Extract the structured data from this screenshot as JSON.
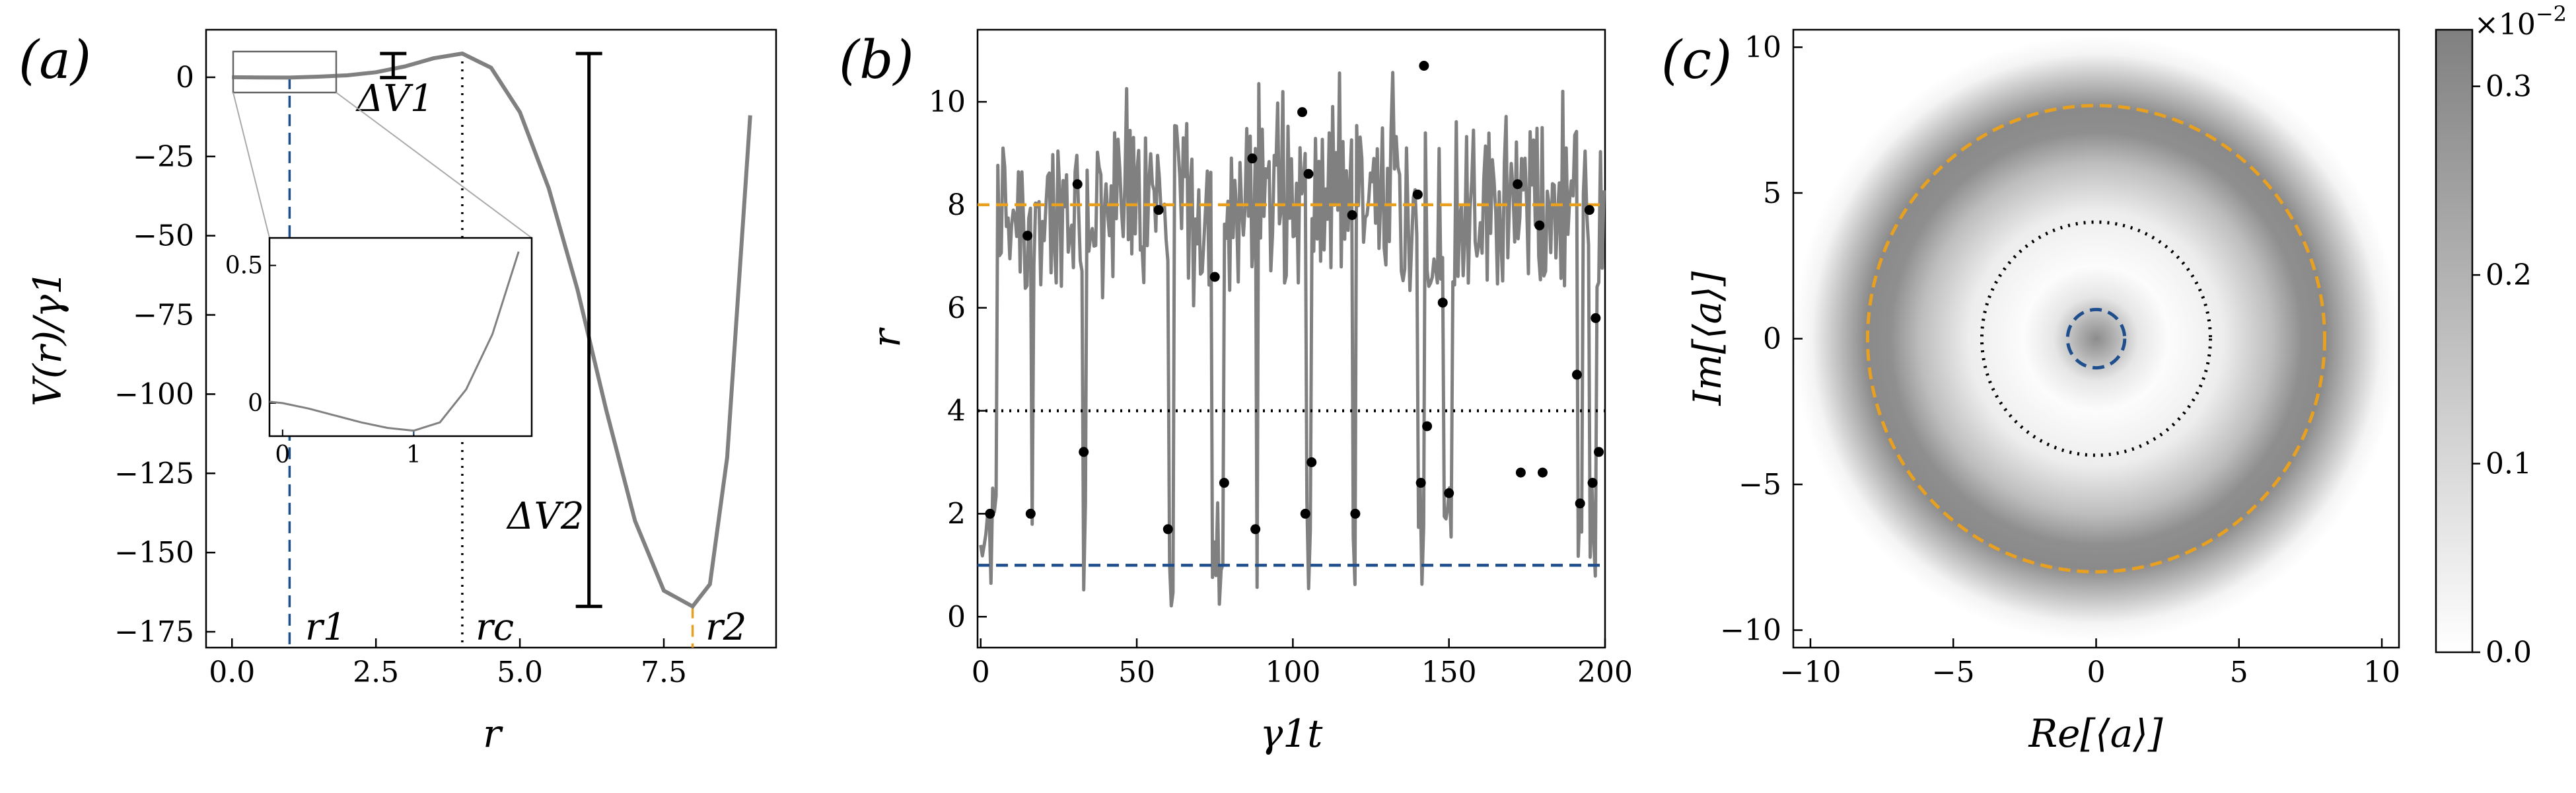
{
  "chart_data": [
    {
      "panel_label": "(a)",
      "type": "line",
      "xlabel": "r",
      "ylabel": "V(r)/γ1",
      "xlim": [
        -0.45,
        9.45
      ],
      "ylim": [
        -180,
        15
      ],
      "xticks": [
        0.0,
        2.5,
        5.0,
        7.5
      ],
      "xtick_labels": [
        "0.0",
        "2.5",
        "5.0",
        "7.5"
      ],
      "yticks": [
        0,
        -25,
        -50,
        -75,
        -100,
        -125,
        -150,
        -175
      ],
      "ytick_labels": [
        "0",
        "−25",
        "−50",
        "−75",
        "−100",
        "−125",
        "−150",
        "−175"
      ],
      "series": [
        {
          "x": [
            0,
            0.5,
            1,
            1.5,
            2,
            2.5,
            3,
            3.5,
            4,
            4.5,
            5,
            5.5,
            6,
            6.5,
            7,
            7.5,
            8,
            8.3,
            8.6,
            9
          ],
          "y": [
            0,
            -0.05,
            -0.1,
            0.2,
            0.6,
            1.6,
            3.4,
            6.0,
            7.5,
            3.0,
            -11,
            -35,
            -67,
            -105,
            -140,
            -162,
            -167,
            -160,
            -120,
            -12
          ]
        }
      ],
      "vlines": [
        {
          "x": 1,
          "style": "dashed",
          "color": "#1f4e8c"
        },
        {
          "x": 4,
          "style": "dotted",
          "color": "#000000"
        },
        {
          "x": 8,
          "style": "dashed",
          "color": "#e8a020"
        }
      ],
      "annotations": {
        "r1": "r1",
        "rc": "rc",
        "r2": "r2",
        "dV1": "ΔV1",
        "dV2": "ΔV2"
      },
      "inset": {
        "xticks": [
          0,
          1
        ],
        "xtick_labels": [
          "0",
          "1"
        ],
        "yticks": [
          0,
          0.5
        ],
        "ytick_labels": [
          "0",
          "0.5"
        ],
        "xlim": [
          -0.1,
          1.9
        ],
        "ylim": [
          -0.12,
          0.6
        ],
        "x": [
          -0.1,
          0,
          0.2,
          0.4,
          0.6,
          0.8,
          1.0,
          1.2,
          1.4,
          1.6,
          1.8
        ],
        "y": [
          0.005,
          0.0,
          -0.02,
          -0.045,
          -0.07,
          -0.09,
          -0.1,
          -0.07,
          0.05,
          0.25,
          0.55
        ]
      }
    },
    {
      "panel_label": "(b)",
      "type": "line",
      "xlabel": "γ1t",
      "ylabel": "r",
      "xlim": [
        -1,
        200
      ],
      "ylim": [
        -0.6,
        11.4
      ],
      "xticks": [
        0,
        50,
        100,
        150,
        200
      ],
      "xtick_labels": [
        "0",
        "50",
        "100",
        "150",
        "200"
      ],
      "yticks": [
        0,
        2,
        4,
        6,
        8,
        10
      ],
      "ytick_labels": [
        "0",
        "2",
        "4",
        "6",
        "8",
        "10"
      ],
      "hlines": [
        {
          "y": 8,
          "style": "dashed",
          "color": "#e8a020"
        },
        {
          "y": 4,
          "style": "dotted",
          "color": "#000000"
        },
        {
          "y": 1,
          "style": "dashed",
          "color": "#1f4e8c"
        }
      ],
      "dots": [
        [
          3,
          2.0
        ],
        [
          15,
          7.4
        ],
        [
          16,
          2.0
        ],
        [
          31,
          8.4
        ],
        [
          33,
          3.2
        ],
        [
          57,
          7.9
        ],
        [
          60,
          1.7
        ],
        [
          75,
          6.6
        ],
        [
          78,
          2.6
        ],
        [
          87,
          8.9
        ],
        [
          88,
          1.7
        ],
        [
          103,
          9.8
        ],
        [
          104,
          2.0
        ],
        [
          105,
          8.6
        ],
        [
          106,
          3.0
        ],
        [
          119,
          7.8
        ],
        [
          120,
          2.0
        ],
        [
          140,
          8.2
        ],
        [
          141,
          2.6
        ],
        [
          142,
          10.7
        ],
        [
          143,
          3.7
        ],
        [
          148,
          6.1
        ],
        [
          150,
          2.4
        ],
        [
          172,
          8.4
        ],
        [
          173,
          2.8
        ],
        [
          179,
          7.6
        ],
        [
          180,
          2.8
        ],
        [
          191,
          4.7
        ],
        [
          192,
          2.2
        ],
        [
          195,
          7.9
        ],
        [
          196,
          2.6
        ],
        [
          197,
          5.8
        ],
        [
          198,
          3.2
        ]
      ]
    },
    {
      "panel_label": "(c)",
      "type": "heatmap",
      "xlabel": "Re[⟨a⟩]",
      "ylabel": "Im[⟨a⟩]",
      "xlim": [
        -10.6,
        10.6
      ],
      "ylim": [
        -10.6,
        10.6
      ],
      "xticks": [
        -10,
        -5,
        0,
        5,
        10
      ],
      "xtick_labels": [
        "−10",
        "−5",
        "0",
        "5",
        "10"
      ],
      "yticks": [
        10,
        5,
        0,
        -5,
        -10
      ],
      "ytick_labels": [
        "10",
        "5",
        "0",
        "−5",
        "−10"
      ],
      "circles": [
        {
          "r": 8,
          "style": "dashed",
          "color": "#e8a020"
        },
        {
          "r": 4,
          "style": "dotted",
          "color": "#000000"
        },
        {
          "r": 1,
          "style": "dashed",
          "color": "#1f4e8c"
        }
      ],
      "ring_peak_r": 8,
      "colorbar": {
        "min": 0.0,
        "max": 0.33,
        "ticks": [
          0.0,
          0.1,
          0.2,
          0.3
        ],
        "tick_labels": [
          "0.0",
          "0.1",
          "0.2",
          "0.3"
        ],
        "multiplier": "×10",
        "multiplier_exp": "−2",
        "color_low": "#ffffff",
        "color_high": "#808080"
      }
    }
  ],
  "colors": {
    "curve": "#808080",
    "blue": "#1f4e8c",
    "orange": "#e8a020"
  }
}
